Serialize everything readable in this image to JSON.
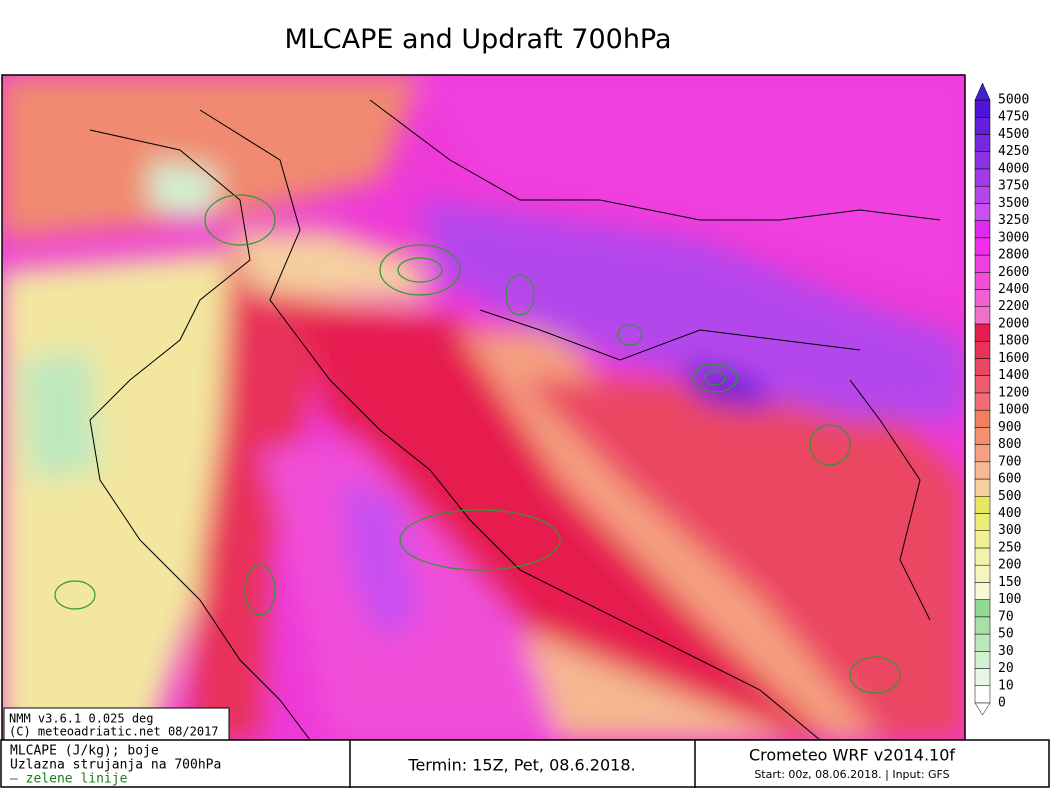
{
  "header": {
    "title": "MLCAPE and Updraft 700hPa"
  },
  "map": {
    "model_line": "NMM v3.6.1 0.025 deg",
    "copyright_line": "(C) meteoadriatic.net 08/2017"
  },
  "legend": {
    "levels": [
      0,
      10,
      20,
      30,
      50,
      70,
      100,
      150,
      200,
      250,
      300,
      400,
      500,
      600,
      700,
      800,
      900,
      1000,
      1200,
      1400,
      1600,
      1800,
      2000,
      2200,
      2400,
      2600,
      2800,
      3000,
      3250,
      3500,
      3750,
      4000,
      4250,
      4500,
      4750,
      5000
    ],
    "colors": [
      "#ffffff",
      "#e6f7e6",
      "#d2f0d2",
      "#bde8bd",
      "#a8e0a8",
      "#93d893",
      "#f8f8d8",
      "#f5f5c0",
      "#f2f2a8",
      "#f0f090",
      "#ecec78",
      "#e8e860",
      "#f5cfa0",
      "#f5b890",
      "#f5a080",
      "#f39070",
      "#f08060",
      "#f06e78",
      "#ee5a6e",
      "#eb4664",
      "#e8325a",
      "#e61e50",
      "#f070c8",
      "#f060d0",
      "#f050d8",
      "#f040e0",
      "#f030e8",
      "#e028f0",
      "#c850f0",
      "#b446ec",
      "#a03ce8",
      "#8c32e4",
      "#7828e0",
      "#641edc",
      "#5014d8"
    ]
  },
  "footer": {
    "left": [
      "MLCAPE (J/kg); boje",
      "Uzlazna strujanja na 700hPa",
      "— zelene linije"
    ],
    "middle": "Termin: 15Z, Pet, 08.6.2018.",
    "right_title": "Crometeo WRF v2014.10f",
    "right_sub": "Start: 00z, 08.06.2018. | Input: GFS"
  }
}
